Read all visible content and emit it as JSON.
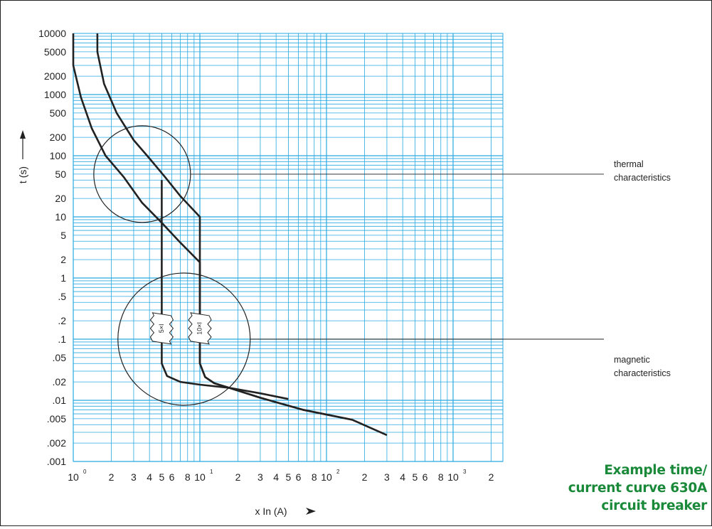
{
  "chart_data": {
    "type": "line",
    "x_scale": "log",
    "y_scale": "log",
    "grid": true,
    "grid_color": "#29a9e1",
    "curve_color": "#222222",
    "xlabel": "x In  (A)",
    "ylabel": "t (s)",
    "xlim": [
      1,
      400
    ],
    "ylim": [
      0.001,
      10000
    ],
    "y_ticks": [
      {
        "value": 10000,
        "label": "10000"
      },
      {
        "value": 5000,
        "label": "5000"
      },
      {
        "value": 2000,
        "label": "2000"
      },
      {
        "value": 1000,
        "label": "1000"
      },
      {
        "value": 500,
        "label": "500"
      },
      {
        "value": 200,
        "label": "200"
      },
      {
        "value": 100,
        "label": "100"
      },
      {
        "value": 50,
        "label": "50"
      },
      {
        "value": 20,
        "label": "20"
      },
      {
        "value": 10,
        "label": "10"
      },
      {
        "value": 5,
        "label": "5"
      },
      {
        "value": 2,
        "label": "2"
      },
      {
        "value": 1,
        "label": "1"
      },
      {
        "value": 0.5,
        "label": ".5"
      },
      {
        "value": 0.2,
        "label": ".2"
      },
      {
        "value": 0.1,
        "label": ".1"
      },
      {
        "value": 0.05,
        "label": ".05"
      },
      {
        "value": 0.02,
        "label": ".02"
      },
      {
        "value": 0.01,
        "label": ".01"
      },
      {
        "value": 0.005,
        "label": ".005"
      },
      {
        "value": 0.002,
        "label": ".002"
      },
      {
        "value": 0.001,
        "label": ".001"
      }
    ],
    "x_ticks": [
      {
        "value": 1,
        "label": "10",
        "sup": "0"
      },
      {
        "value": 2,
        "label": "2"
      },
      {
        "value": 3,
        "label": "3"
      },
      {
        "value": 4,
        "label": "4"
      },
      {
        "value": 5,
        "label": "5"
      },
      {
        "value": 6,
        "label": "6"
      },
      {
        "value": 8,
        "label": "8"
      },
      {
        "value": 10,
        "label": "10",
        "sup": "1"
      },
      {
        "value": 20,
        "label": "2"
      },
      {
        "value": 30,
        "label": "3"
      },
      {
        "value": 40,
        "label": "4"
      },
      {
        "value": 50,
        "label": "5"
      },
      {
        "value": 60,
        "label": "6"
      },
      {
        "value": 80,
        "label": "8"
      },
      {
        "value": 100,
        "label": "10",
        "sup": "2"
      },
      {
        "value": 200,
        "label": "2"
      },
      {
        "value": 300,
        "label": "3"
      },
      {
        "value": 400,
        "label": "4"
      },
      {
        "value": 500,
        "label": "5"
      },
      {
        "value": 600,
        "label": "6"
      },
      {
        "value": 800,
        "label": "8"
      },
      {
        "value": 1000,
        "label": "10",
        "sup": "3"
      },
      {
        "value": 2000,
        "label": "2"
      }
    ],
    "series": [
      {
        "points": [
          [
            1.0,
            10000
          ],
          [
            1.0,
            3000
          ],
          [
            1.15,
            900
          ],
          [
            1.4,
            280
          ],
          [
            1.8,
            100
          ],
          [
            2.5,
            45
          ],
          [
            3.5,
            17
          ],
          [
            5,
            8
          ],
          [
            7,
            3.8
          ],
          [
            10,
            1.8
          ],
          [
            10,
            0.04
          ],
          [
            11,
            0.024
          ],
          [
            13,
            0.019
          ],
          [
            17,
            0.016
          ],
          [
            30,
            0.011
          ],
          [
            65,
            0.007
          ],
          [
            160,
            0.0048
          ]
        ]
      },
      {
        "points": [
          [
            1.55,
            10000
          ],
          [
            1.55,
            5000
          ],
          [
            1.75,
            1500
          ],
          [
            2.2,
            500
          ],
          [
            3,
            180
          ],
          [
            4,
            90
          ],
          [
            5.3,
            45
          ],
          [
            7,
            22
          ],
          [
            10,
            10
          ],
          [
            10,
            0.04
          ],
          [
            11,
            0.024
          ],
          [
            13,
            0.019
          ],
          [
            17,
            0.016
          ],
          [
            30,
            0.011
          ],
          [
            65,
            0.007
          ],
          [
            160,
            0.0048
          ],
          [
            300,
            0.0027
          ]
        ]
      },
      {
        "points": [
          [
            5,
            40
          ],
          [
            5,
            0.04
          ],
          [
            5.5,
            0.025
          ],
          [
            7,
            0.02
          ],
          [
            10,
            0.018
          ],
          [
            17,
            0.016
          ],
          [
            30,
            0.013
          ],
          [
            50,
            0.0105
          ]
        ]
      }
    ],
    "markers": [
      {
        "x": 5,
        "y": 0.15,
        "label": "5×I"
      },
      {
        "x": 10,
        "y": 0.15,
        "label": "10×I"
      }
    ],
    "annotations": [
      {
        "label": [
          "thermal",
          "characteristics"
        ],
        "circle": {
          "x": 3.5,
          "y": 50
        }
      },
      {
        "label": [
          "magnetic",
          "characteristics"
        ],
        "circle": {
          "x": 7.5,
          "y": 0.1
        }
      }
    ]
  },
  "caption": [
    "Example time/",
    "current curve 630A",
    "circuit breaker"
  ]
}
